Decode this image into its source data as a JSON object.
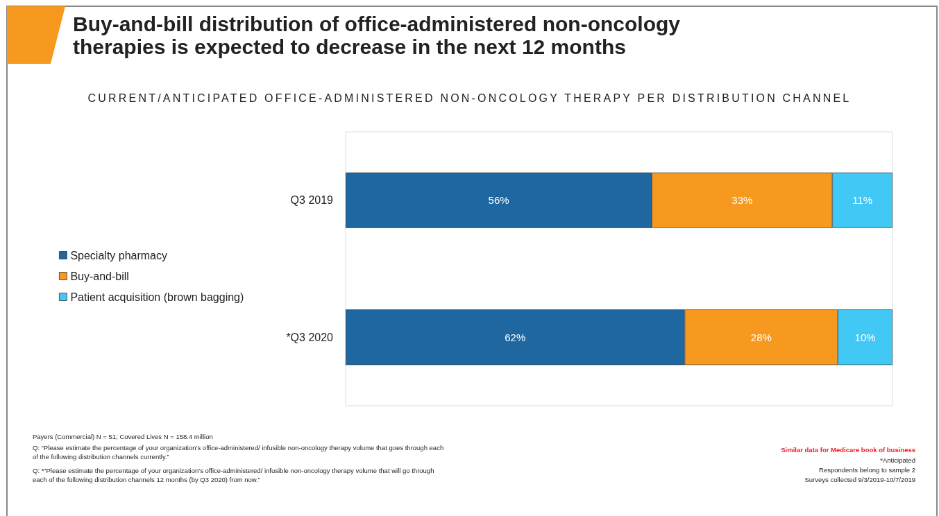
{
  "chart_data": {
    "type": "bar",
    "orientation": "horizontal",
    "stacked": true,
    "title": "Buy-and-bill distribution of office-administered non-oncology therapies is expected to decrease in the next 12 months",
    "subtitle": "CURRENT/ANTICIPATED OFFICE-ADMINISTERED NON-ONCOLOGY THERAPY PER DISTRIBUTION CHANNEL",
    "categories": [
      "Q3 2019",
      "*Q3 2020"
    ],
    "xlim": [
      0,
      100
    ],
    "tick_labels": "y",
    "grid": false,
    "legend": "left",
    "series": [
      {
        "name": "Specialty pharmacy",
        "color": "#1f67a0",
        "values": [
          56,
          62
        ],
        "value_labels": [
          "56%",
          "62%"
        ]
      },
      {
        "name": "Buy-and-bill",
        "color": "#f7991f",
        "values": [
          33,
          28
        ],
        "value_labels": [
          "33%",
          "28%"
        ]
      },
      {
        "name": "Patient acquisition (brown bagging)",
        "color": "#42c8f4",
        "values": [
          11,
          10
        ],
        "value_labels": [
          "11%",
          "10%"
        ]
      }
    ],
    "annotations": [
      "Payers (Commercial) N = 51; Covered Lives N = 158.4 million",
      "Q: “Please estimate the percentage of your organization’s office-administered/ infusible non-oncology therapy volume that goes through each of the following distribution channels currently.”",
      "Q: *“Please estimate the percentage of your organization’s office-administered/ infusible non-oncology therapy volume that will go through each of the following distribution channels 12 months (by Q3 2020) from now.”",
      "Similar data for Medicare book of business",
      "*Anticipated",
      "Respondents belong to sample 2",
      "Surveys collected 9/3/2019-10/7/2019"
    ]
  }
}
